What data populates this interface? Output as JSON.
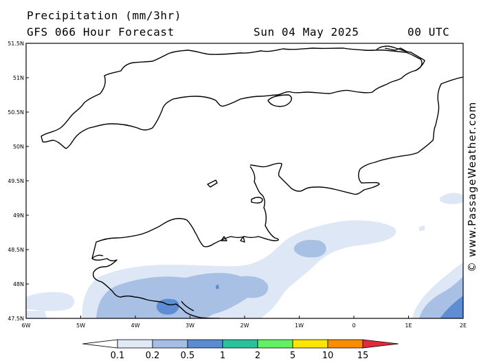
{
  "header": {
    "title": "Precipitation (mm/3hr)",
    "subtitle": "GFS 066 Hour Forecast",
    "date": "Sun 04 May 2025",
    "time": "00 UTC"
  },
  "brand": "© www.PassageWeather.com",
  "axes": {
    "lat_labels": [
      "51.5N",
      "51N",
      "50.5N",
      "50N",
      "49.5N",
      "49N",
      "48.5N",
      "48N",
      "47.5N"
    ],
    "lon_labels": [
      "6W",
      "5W",
      "4W",
      "3W",
      "2W",
      "1W",
      "0",
      "1E",
      "2E"
    ]
  },
  "legend": {
    "labels": [
      "0.1",
      "0.2",
      "0.5",
      "1",
      "2",
      "5",
      "10",
      "15"
    ],
    "colors": [
      "#ffffff",
      "#e1e9f6",
      "#a6bee4",
      "#5b8bd2",
      "#28c29c",
      "#64f064",
      "#fae600",
      "#fa8c00",
      "#e6283c"
    ]
  },
  "precip_colors": {
    "light": "#dde7f5",
    "medium": "#a8c0e4",
    "heavy": "#5e8dd3"
  },
  "icons": {
    "map": "coastline-map-icon"
  }
}
